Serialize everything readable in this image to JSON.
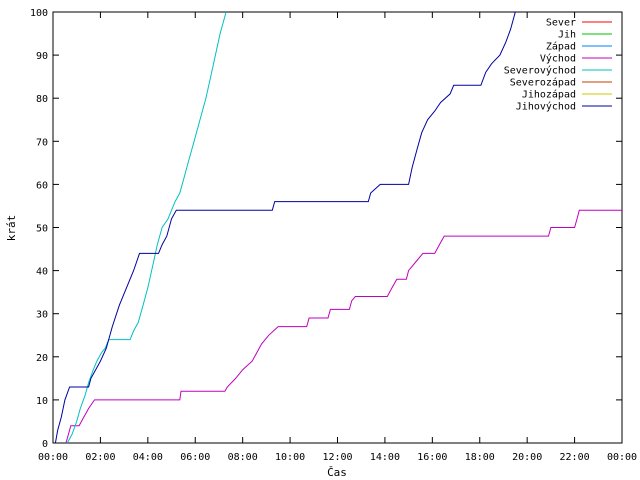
{
  "chart_data": {
    "type": "line",
    "title": "",
    "xlabel": "Čas",
    "ylabel": "krát",
    "xlim": [
      0,
      24
    ],
    "ylim": [
      0,
      100
    ],
    "grid": false,
    "legend_position": "top-right",
    "x_ticks": [
      "00:00",
      "02:00",
      "04:00",
      "06:00",
      "08:00",
      "10:00",
      "12:00",
      "14:00",
      "16:00",
      "18:00",
      "20:00",
      "22:00",
      "00:00"
    ],
    "y_ticks": [
      0,
      10,
      20,
      30,
      40,
      50,
      60,
      70,
      80,
      90,
      100
    ],
    "series": [
      {
        "name": "Sever",
        "color": "#ff0000",
        "points": []
      },
      {
        "name": "Jih",
        "color": "#00c000",
        "points": []
      },
      {
        "name": "Západ",
        "color": "#0080ff",
        "points": []
      },
      {
        "name": "Východ",
        "color": "#c000c0",
        "points": [
          [
            0.55,
            0
          ],
          [
            0.65,
            2
          ],
          [
            0.75,
            4
          ],
          [
            1.1,
            4
          ],
          [
            1.3,
            6
          ],
          [
            1.5,
            8
          ],
          [
            1.75,
            10
          ],
          [
            5.35,
            10
          ],
          [
            5.4,
            12
          ],
          [
            7.25,
            12
          ],
          [
            7.35,
            13
          ],
          [
            7.7,
            15
          ],
          [
            8.0,
            17
          ],
          [
            8.4,
            19
          ],
          [
            8.6,
            21
          ],
          [
            8.8,
            23
          ],
          [
            9.1,
            25
          ],
          [
            9.5,
            27
          ],
          [
            10.7,
            27
          ],
          [
            10.8,
            29
          ],
          [
            11.6,
            29
          ],
          [
            11.7,
            31
          ],
          [
            12.5,
            31
          ],
          [
            12.6,
            33
          ],
          [
            12.75,
            34
          ],
          [
            14.1,
            34
          ],
          [
            14.3,
            36
          ],
          [
            14.5,
            38
          ],
          [
            14.9,
            38
          ],
          [
            15.0,
            40
          ],
          [
            15.3,
            42
          ],
          [
            15.6,
            44
          ],
          [
            16.1,
            44
          ],
          [
            16.3,
            46
          ],
          [
            16.5,
            48
          ],
          [
            20.9,
            48
          ],
          [
            21.0,
            50
          ],
          [
            22.0,
            50
          ],
          [
            22.1,
            52
          ],
          [
            22.2,
            54
          ],
          [
            24.0,
            54
          ]
        ]
      },
      {
        "name": "Severovýchod",
        "color": "#00c0c0",
        "points": [
          [
            0.6,
            0
          ],
          [
            0.7,
            1
          ],
          [
            0.8,
            2
          ],
          [
            1.0,
            5
          ],
          [
            1.15,
            8
          ],
          [
            1.35,
            11
          ],
          [
            1.5,
            14
          ],
          [
            1.7,
            17
          ],
          [
            1.85,
            19
          ],
          [
            2.05,
            21
          ],
          [
            2.2,
            22
          ],
          [
            2.35,
            24
          ],
          [
            3.25,
            24
          ],
          [
            3.4,
            26
          ],
          [
            3.6,
            28
          ],
          [
            3.8,
            32
          ],
          [
            4.0,
            36
          ],
          [
            4.2,
            41
          ],
          [
            4.4,
            46
          ],
          [
            4.6,
            50
          ],
          [
            4.85,
            52
          ],
          [
            5.0,
            54
          ],
          [
            5.15,
            56
          ],
          [
            5.35,
            58
          ],
          [
            5.5,
            61
          ],
          [
            5.7,
            65
          ],
          [
            5.95,
            70
          ],
          [
            6.2,
            75
          ],
          [
            6.45,
            80
          ],
          [
            6.65,
            85
          ],
          [
            6.85,
            90
          ],
          [
            7.05,
            95
          ],
          [
            7.3,
            100
          ]
        ]
      },
      {
        "name": "Severozápad",
        "color": "#c04000",
        "points": []
      },
      {
        "name": "Jihozápad",
        "color": "#c8c800",
        "points": []
      },
      {
        "name": "Jihovýchod",
        "color": "#0000a0",
        "points": [
          [
            0.1,
            0
          ],
          [
            0.2,
            3
          ],
          [
            0.35,
            6
          ],
          [
            0.5,
            10
          ],
          [
            0.7,
            13
          ],
          [
            1.5,
            13
          ],
          [
            1.6,
            15
          ],
          [
            1.8,
            17
          ],
          [
            2.0,
            19
          ],
          [
            2.25,
            22
          ],
          [
            2.5,
            27
          ],
          [
            2.8,
            32
          ],
          [
            3.1,
            36
          ],
          [
            3.4,
            40
          ],
          [
            3.65,
            44
          ],
          [
            4.45,
            44
          ],
          [
            4.6,
            46
          ],
          [
            4.8,
            48
          ],
          [
            5.0,
            52
          ],
          [
            5.2,
            54
          ],
          [
            9.25,
            54
          ],
          [
            9.35,
            56
          ],
          [
            13.3,
            56
          ],
          [
            13.4,
            58
          ],
          [
            13.8,
            60
          ],
          [
            15.0,
            60
          ],
          [
            15.15,
            64
          ],
          [
            15.35,
            68
          ],
          [
            15.55,
            72
          ],
          [
            15.8,
            75
          ],
          [
            16.1,
            77
          ],
          [
            16.35,
            79
          ],
          [
            16.75,
            81
          ],
          [
            16.9,
            83
          ],
          [
            18.05,
            83
          ],
          [
            18.25,
            86
          ],
          [
            18.5,
            88
          ],
          [
            18.85,
            90
          ],
          [
            19.1,
            93
          ],
          [
            19.3,
            96
          ],
          [
            19.5,
            100
          ]
        ]
      }
    ]
  }
}
